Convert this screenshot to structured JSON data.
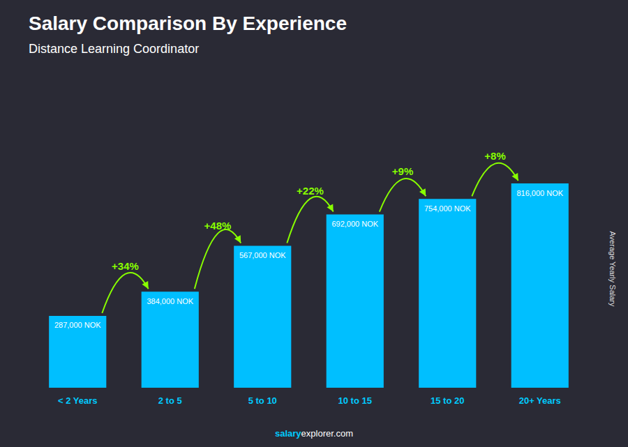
{
  "chart_data": {
    "type": "bar",
    "title": "Salary Comparison By Experience",
    "subtitle": "Distance Learning Coordinator",
    "ylabel": "Average Yearly Salary",
    "categories": [
      "< 2 Years",
      "2 to 5",
      "5 to 10",
      "10 to 15",
      "15 to 20",
      "20+ Years"
    ],
    "values": [
      287000,
      384000,
      567000,
      692000,
      754000,
      816000
    ],
    "value_labels": [
      "287,000 NOK",
      "384,000 NOK",
      "567,000 NOK",
      "692,000 NOK",
      "754,000 NOK",
      "816,000 NOK"
    ],
    "pct_changes": [
      null,
      "+34%",
      "+48%",
      "+22%",
      "+9%",
      "+8%"
    ],
    "footer": [
      "salary",
      "explorer.com"
    ],
    "color": "#00bfff",
    "ylim": [
      0,
      950000
    ],
    "grid": false,
    "data_labels": true,
    "tick_labels": "x"
  }
}
